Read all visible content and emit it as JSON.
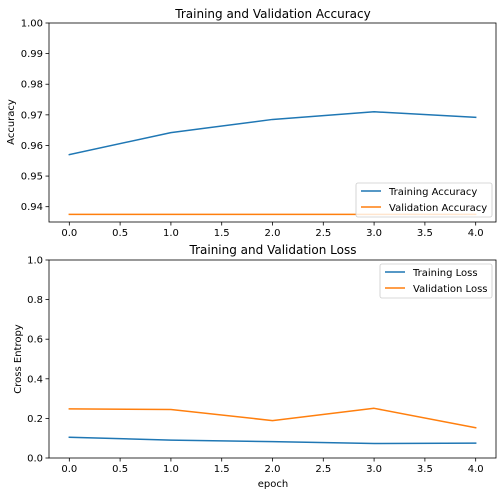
{
  "chart_data": [
    {
      "type": "line",
      "title": "Training and Validation Accuracy",
      "xlabel": "",
      "ylabel": "Accuracy",
      "xlim": [
        -0.2,
        4.2
      ],
      "ylim": [
        0.935,
        1.0
      ],
      "xticks": [
        0.0,
        0.5,
        1.0,
        1.5,
        2.0,
        2.5,
        3.0,
        3.5,
        4.0
      ],
      "xtick_labels": [
        "0.0",
        "0.5",
        "1.0",
        "1.5",
        "2.0",
        "2.5",
        "3.0",
        "3.5",
        "4.0"
      ],
      "yticks": [
        0.94,
        0.95,
        0.96,
        0.97,
        0.98,
        0.99,
        1.0
      ],
      "ytick_labels": [
        "0.94",
        "0.95",
        "0.96",
        "0.97",
        "0.98",
        "0.99",
        "1.00"
      ],
      "x": [
        0,
        1,
        2,
        3,
        4
      ],
      "series": [
        {
          "name": "Training Accuracy",
          "color": "#1f77b4",
          "values": [
            0.957,
            0.9642,
            0.9685,
            0.971,
            0.9692
          ]
        },
        {
          "name": "Validation Accuracy",
          "color": "#ff7f0e",
          "values": [
            0.9375,
            0.9375,
            0.9375,
            0.9375,
            0.9375
          ]
        }
      ],
      "legend": "lower right",
      "grid": false
    },
    {
      "type": "line",
      "title": "Training and Validation Loss",
      "xlabel": "epoch",
      "ylabel": "Cross Entropy",
      "xlim": [
        -0.2,
        4.2
      ],
      "ylim": [
        0.0,
        1.0
      ],
      "xticks": [
        0.0,
        0.5,
        1.0,
        1.5,
        2.0,
        2.5,
        3.0,
        3.5,
        4.0
      ],
      "xtick_labels": [
        "0.0",
        "0.5",
        "1.0",
        "1.5",
        "2.0",
        "2.5",
        "3.0",
        "3.5",
        "4.0"
      ],
      "yticks": [
        0.0,
        0.2,
        0.4,
        0.6,
        0.8,
        1.0
      ],
      "ytick_labels": [
        "0.0",
        "0.2",
        "0.4",
        "0.6",
        "0.8",
        "1.0"
      ],
      "x": [
        0,
        1,
        2,
        3,
        4
      ],
      "series": [
        {
          "name": "Training Loss",
          "color": "#1f77b4",
          "values": [
            0.105,
            0.09,
            0.083,
            0.073,
            0.075
          ]
        },
        {
          "name": "Validation Loss",
          "color": "#ff7f0e",
          "values": [
            0.248,
            0.245,
            0.189,
            0.251,
            0.153
          ]
        }
      ],
      "legend": "upper right",
      "grid": false
    }
  ]
}
